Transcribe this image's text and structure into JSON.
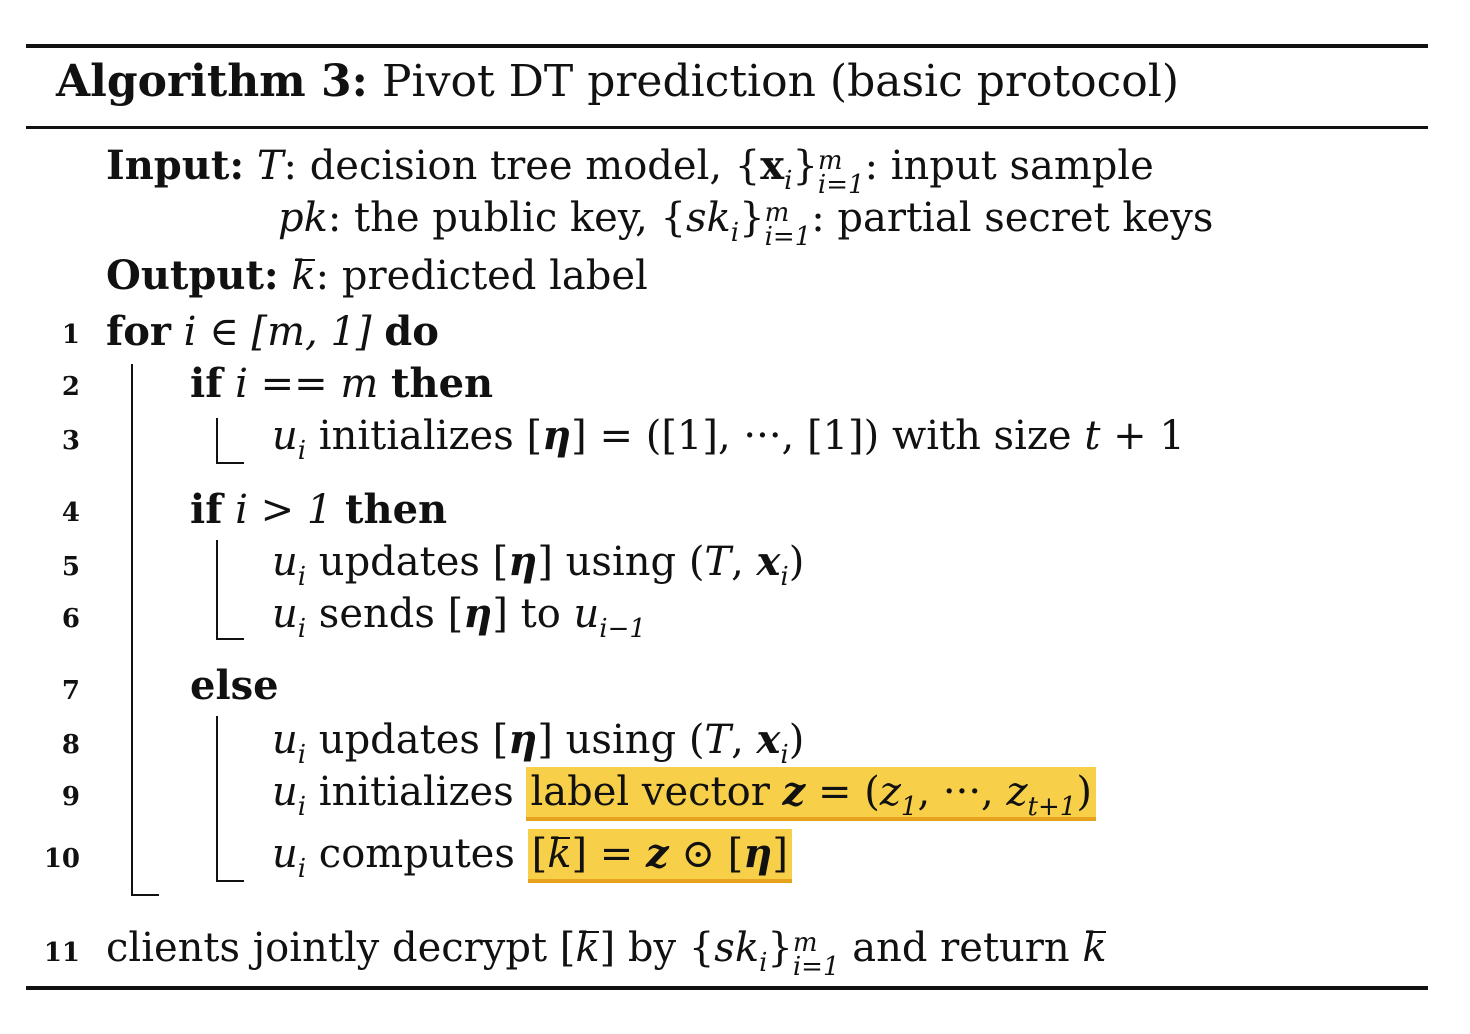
{
  "title": {
    "label": "Algorithm 3:",
    "text": "Pivot DT prediction (basic protocol)"
  },
  "input": {
    "label": "Input:",
    "line1_a": "T",
    "line1_b": ": decision tree model, {",
    "line1_x": "x",
    "line1_c": "}",
    "line1_d": ": input sample",
    "line2_a": "pk",
    "line2_b": ": the public key, {",
    "line2_sk": "sk",
    "line2_c": "}",
    "line2_d": ": partial secret keys"
  },
  "output": {
    "label": "Output:",
    "k": "k",
    "text": ": predicted label"
  },
  "lines": [
    {
      "num": "1",
      "kw1": "for",
      "text": " i ∈ [m, 1] ",
      "kw2": "do"
    },
    {
      "num": "2",
      "kw1": "if",
      "text": " i == m ",
      "kw2": "then"
    },
    {
      "num": "3",
      "u": "u",
      "sub": "i",
      "text": " initializes [",
      "eta": "η",
      "text2": "] = ([1], ···, [1]) with size ",
      "t": "t",
      "text3": " + 1"
    },
    {
      "num": "4",
      "kw1": "if",
      "text": " i > 1 ",
      "kw2": "then"
    },
    {
      "num": "5",
      "u": "u",
      "sub": "i",
      "text": " updates [",
      "eta": "η",
      "text2": "] using (",
      "T": "T",
      "text3": ", ",
      "x": "x",
      "text4": ")"
    },
    {
      "num": "6",
      "u": "u",
      "sub": "i",
      "text": " sends [",
      "eta": "η",
      "text2": "] to ",
      "u2": "u",
      "sub2": "i−1"
    },
    {
      "num": "7",
      "kw1": "else"
    },
    {
      "num": "8",
      "u": "u",
      "sub": "i",
      "text": " updates [",
      "eta": "η",
      "text2": "] using (",
      "T": "T",
      "text3": ", ",
      "x": "x",
      "text4": ")"
    },
    {
      "num": "9",
      "u": "u",
      "sub": "i",
      "text": " initializes ",
      "hl": "label vector ",
      "z": "z",
      "text2": " = (",
      "z1": "z",
      "sub1": "1",
      "mid": ", ···, ",
      "zt": "z",
      "subt": "t+1",
      "end": ")"
    },
    {
      "num": "10",
      "u": "u",
      "sub": "i",
      "text": " computes ",
      "text2": "[",
      "k": "k",
      "text3": "] = ",
      "z": "z",
      "text4": " ⊙ [",
      "eta": "η",
      "text5": "]"
    },
    {
      "num": "11",
      "text": "clients jointly decrypt [",
      "k": "k",
      "text2": "] by {",
      "sk": "sk",
      "text3": "}",
      "text4": " and return ",
      "k2": "k"
    }
  ],
  "sub_i": "i",
  "sup_m": "m",
  "sub_i1": "i=1"
}
